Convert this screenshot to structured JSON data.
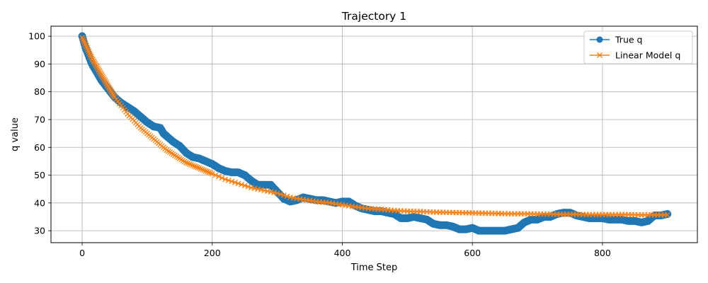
{
  "chart_data": {
    "type": "line",
    "title": "Trajectory 1",
    "xlabel": "Time Step",
    "ylabel": "q value",
    "xlim": [
      -48,
      946
    ],
    "ylim": [
      25.7,
      103.6
    ],
    "xticks": [
      0,
      200,
      400,
      600,
      800
    ],
    "yticks": [
      30,
      40,
      50,
      60,
      70,
      80,
      90,
      100
    ],
    "grid": true,
    "legend_position": "top-right",
    "series": [
      {
        "name": "True q",
        "color": "#1f77b4",
        "marker": "circle",
        "x": [
          0,
          5,
          10,
          15,
          20,
          25,
          30,
          35,
          40,
          45,
          50,
          60,
          70,
          80,
          90,
          100,
          110,
          120,
          125,
          130,
          140,
          150,
          160,
          170,
          180,
          190,
          200,
          210,
          220,
          230,
          240,
          250,
          260,
          270,
          280,
          290,
          300,
          310,
          320,
          330,
          340,
          350,
          360,
          370,
          380,
          390,
          400,
          410,
          420,
          430,
          440,
          450,
          460,
          470,
          480,
          490,
          500,
          510,
          520,
          530,
          540,
          550,
          560,
          570,
          580,
          590,
          600,
          610,
          620,
          630,
          640,
          650,
          660,
          670,
          680,
          690,
          700,
          710,
          720,
          730,
          740,
          750,
          760,
          770,
          780,
          790,
          800,
          810,
          820,
          830,
          840,
          850,
          860,
          870,
          880,
          890,
          900
        ],
        "y": [
          100,
          96,
          93,
          90,
          88,
          86,
          84,
          82.5,
          81,
          79.5,
          78,
          76,
          74.5,
          73,
          71,
          69,
          67.5,
          67,
          65,
          64,
          62,
          60.5,
          58,
          56.5,
          56,
          55,
          54,
          52.5,
          51.5,
          51,
          51,
          50,
          48,
          46.5,
          46.5,
          46.5,
          44,
          41.5,
          40.5,
          41,
          42,
          41.5,
          41,
          41,
          40.5,
          40,
          40.5,
          40.5,
          39,
          38,
          37.5,
          37,
          37,
          36.5,
          36,
          34.5,
          34.5,
          35,
          34.5,
          34,
          32.5,
          32,
          32,
          31.5,
          30.5,
          30.5,
          31,
          30,
          30,
          30,
          30,
          30,
          30.5,
          31,
          33,
          34,
          34,
          35,
          35,
          36,
          36.5,
          36.5,
          35.5,
          35,
          34.5,
          34.5,
          34.5,
          34,
          34,
          34,
          33.5,
          33.5,
          33,
          33.5,
          35.5,
          35.5,
          36
        ]
      },
      {
        "name": "Linear Model q",
        "color": "#ff7f0e",
        "marker": "x",
        "x": [
          0,
          5,
          10,
          15,
          20,
          25,
          30,
          35,
          40,
          45,
          50,
          60,
          70,
          80,
          90,
          100,
          110,
          120,
          130,
          140,
          150,
          160,
          170,
          180,
          190,
          200,
          220,
          240,
          260,
          280,
          300,
          320,
          340,
          360,
          380,
          400,
          420,
          440,
          460,
          480,
          500,
          520,
          540,
          560,
          580,
          600,
          620,
          640,
          660,
          680,
          700,
          720,
          740,
          760,
          780,
          800,
          820,
          840,
          860,
          880,
          900
        ],
        "y": [
          99.5,
          97,
          94.5,
          92,
          90,
          88,
          86,
          84,
          82,
          80,
          78,
          75,
          72,
          69.5,
          67,
          65,
          63,
          61,
          59,
          57.5,
          56,
          54.5,
          53.5,
          52.5,
          51.5,
          50.5,
          48.5,
          47,
          45.5,
          44.5,
          43.5,
          42,
          41.2,
          40.5,
          40,
          39.3,
          38.6,
          38,
          37.7,
          37.3,
          37,
          36.9,
          36.7,
          36.6,
          36.5,
          36.4,
          36.3,
          36.2,
          36.1,
          36.1,
          36,
          36,
          35.9,
          35.9,
          35.8,
          35.8,
          35.8,
          35.8,
          35.7,
          35.7,
          35.7
        ]
      }
    ]
  }
}
